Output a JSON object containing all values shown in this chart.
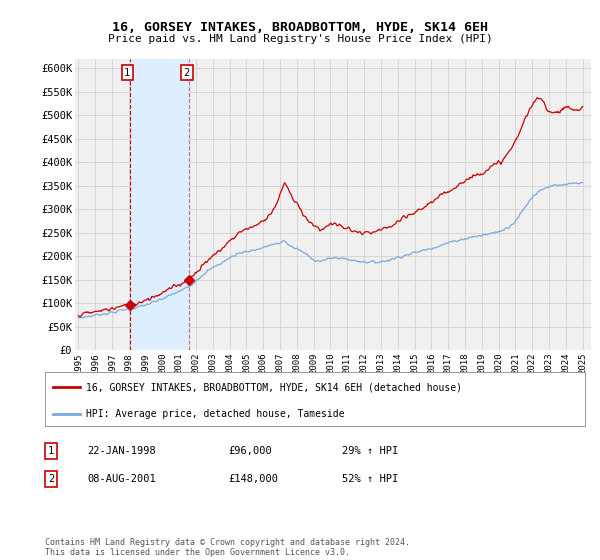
{
  "title": "16, GORSEY INTAKES, BROADBOTTOM, HYDE, SK14 6EH",
  "subtitle": "Price paid vs. HM Land Registry's House Price Index (HPI)",
  "legend_line1": "16, GORSEY INTAKES, BROADBOTTOM, HYDE, SK14 6EH (detached house)",
  "legend_line2": "HPI: Average price, detached house, Tameside",
  "annotation1_date": "22-JAN-1998",
  "annotation1_price": "£96,000",
  "annotation1_hpi": "29% ↑ HPI",
  "annotation2_date": "08-AUG-2001",
  "annotation2_price": "£148,000",
  "annotation2_hpi": "52% ↑ HPI",
  "footnote": "Contains HM Land Registry data © Crown copyright and database right 2024.\nThis data is licensed under the Open Government Licence v3.0.",
  "sale1_year": 1998.06,
  "sale1_price": 96000,
  "sale2_year": 2001.6,
  "sale2_price": 148000,
  "ylim": [
    0,
    620000
  ],
  "xlim": [
    1994.8,
    2025.5
  ],
  "red_color": "#cc0000",
  "blue_color": "#7aaadd",
  "shade_color": "#ddeeff",
  "background_color": "#f0f0f0",
  "grid_color": "#cccccc",
  "hpi_base": [
    [
      1995.0,
      68000
    ],
    [
      1995.5,
      71000
    ],
    [
      1996.0,
      74000
    ],
    [
      1996.5,
      77000
    ],
    [
      1997.0,
      80000
    ],
    [
      1997.5,
      84000
    ],
    [
      1998.0,
      88000
    ],
    [
      1998.5,
      91000
    ],
    [
      1999.0,
      96000
    ],
    [
      1999.5,
      102000
    ],
    [
      2000.0,
      109000
    ],
    [
      2000.5,
      117000
    ],
    [
      2001.0,
      125000
    ],
    [
      2001.5,
      134000
    ],
    [
      2002.0,
      148000
    ],
    [
      2002.5,
      163000
    ],
    [
      2003.0,
      175000
    ],
    [
      2003.5,
      185000
    ],
    [
      2004.0,
      196000
    ],
    [
      2004.5,
      205000
    ],
    [
      2005.0,
      210000
    ],
    [
      2005.5,
      213000
    ],
    [
      2006.0,
      218000
    ],
    [
      2006.5,
      224000
    ],
    [
      2007.0,
      228000
    ],
    [
      2007.25,
      232000
    ],
    [
      2007.5,
      225000
    ],
    [
      2008.0,
      215000
    ],
    [
      2008.5,
      205000
    ],
    [
      2009.0,
      193000
    ],
    [
      2009.5,
      190000
    ],
    [
      2010.0,
      195000
    ],
    [
      2010.5,
      196000
    ],
    [
      2011.0,
      193000
    ],
    [
      2011.5,
      190000
    ],
    [
      2012.0,
      188000
    ],
    [
      2012.5,
      187000
    ],
    [
      2013.0,
      188000
    ],
    [
      2013.5,
      192000
    ],
    [
      2014.0,
      197000
    ],
    [
      2014.5,
      202000
    ],
    [
      2015.0,
      207000
    ],
    [
      2015.5,
      212000
    ],
    [
      2016.0,
      217000
    ],
    [
      2016.5,
      222000
    ],
    [
      2017.0,
      228000
    ],
    [
      2017.5,
      233000
    ],
    [
      2018.0,
      237000
    ],
    [
      2018.5,
      241000
    ],
    [
      2019.0,
      244000
    ],
    [
      2019.5,
      248000
    ],
    [
      2020.0,
      252000
    ],
    [
      2020.5,
      260000
    ],
    [
      2021.0,
      275000
    ],
    [
      2021.5,
      300000
    ],
    [
      2022.0,
      325000
    ],
    [
      2022.5,
      340000
    ],
    [
      2023.0,
      348000
    ],
    [
      2023.5,
      350000
    ],
    [
      2024.0,
      352000
    ],
    [
      2024.5,
      354000
    ],
    [
      2025.0,
      355000
    ]
  ],
  "red_base": [
    [
      1995.0,
      75000
    ],
    [
      1995.5,
      78000
    ],
    [
      1996.0,
      81000
    ],
    [
      1996.5,
      85000
    ],
    [
      1997.0,
      88000
    ],
    [
      1997.5,
      92000
    ],
    [
      1998.0,
      96000
    ],
    [
      1998.5,
      100000
    ],
    [
      1999.0,
      107000
    ],
    [
      1999.5,
      114000
    ],
    [
      2000.0,
      122000
    ],
    [
      2000.5,
      131000
    ],
    [
      2001.0,
      140000
    ],
    [
      2001.5,
      148000
    ],
    [
      2002.0,
      165000
    ],
    [
      2002.5,
      184000
    ],
    [
      2003.0,
      200000
    ],
    [
      2003.5,
      215000
    ],
    [
      2004.0,
      232000
    ],
    [
      2004.5,
      248000
    ],
    [
      2005.0,
      258000
    ],
    [
      2005.5,
      265000
    ],
    [
      2006.0,
      275000
    ],
    [
      2006.5,
      295000
    ],
    [
      2007.0,
      330000
    ],
    [
      2007.25,
      352000
    ],
    [
      2007.5,
      340000
    ],
    [
      2008.0,
      310000
    ],
    [
      2008.5,
      285000
    ],
    [
      2009.0,
      265000
    ],
    [
      2009.5,
      258000
    ],
    [
      2010.0,
      268000
    ],
    [
      2010.5,
      265000
    ],
    [
      2011.0,
      258000
    ],
    [
      2011.5,
      252000
    ],
    [
      2012.0,
      248000
    ],
    [
      2012.5,
      250000
    ],
    [
      2013.0,
      255000
    ],
    [
      2013.5,
      262000
    ],
    [
      2014.0,
      272000
    ],
    [
      2014.5,
      283000
    ],
    [
      2015.0,
      292000
    ],
    [
      2015.5,
      303000
    ],
    [
      2016.0,
      315000
    ],
    [
      2016.5,
      326000
    ],
    [
      2017.0,
      338000
    ],
    [
      2017.5,
      350000
    ],
    [
      2018.0,
      360000
    ],
    [
      2018.5,
      370000
    ],
    [
      2019.0,
      378000
    ],
    [
      2019.5,
      388000
    ],
    [
      2020.0,
      398000
    ],
    [
      2020.5,
      415000
    ],
    [
      2021.0,
      445000
    ],
    [
      2021.5,
      485000
    ],
    [
      2022.0,
      520000
    ],
    [
      2022.5,
      535000
    ],
    [
      2023.0,
      510000
    ],
    [
      2023.5,
      508000
    ],
    [
      2024.0,
      515000
    ],
    [
      2024.5,
      512000
    ],
    [
      2025.0,
      515000
    ]
  ]
}
